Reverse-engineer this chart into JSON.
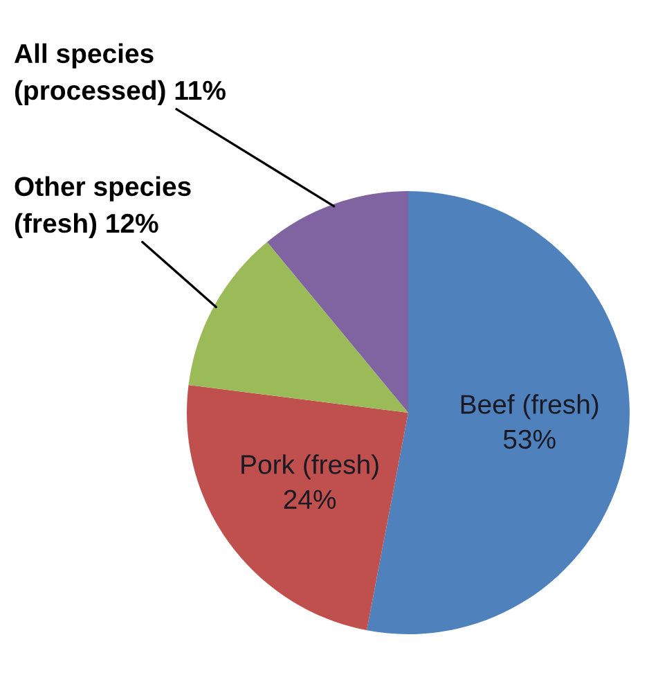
{
  "chart_data": {
    "type": "pie",
    "categories": [
      "Beef (fresh)",
      "Pork (fresh)",
      "Other species (fresh)",
      "All species (processed)"
    ],
    "values": [
      53,
      24,
      12,
      11
    ],
    "value_labels": [
      "53%",
      "24%",
      "12%",
      "11%"
    ],
    "colors": [
      "#4f81bd",
      "#c0504d",
      "#9bbb59",
      "#8064a2"
    ],
    "legend": false
  }
}
